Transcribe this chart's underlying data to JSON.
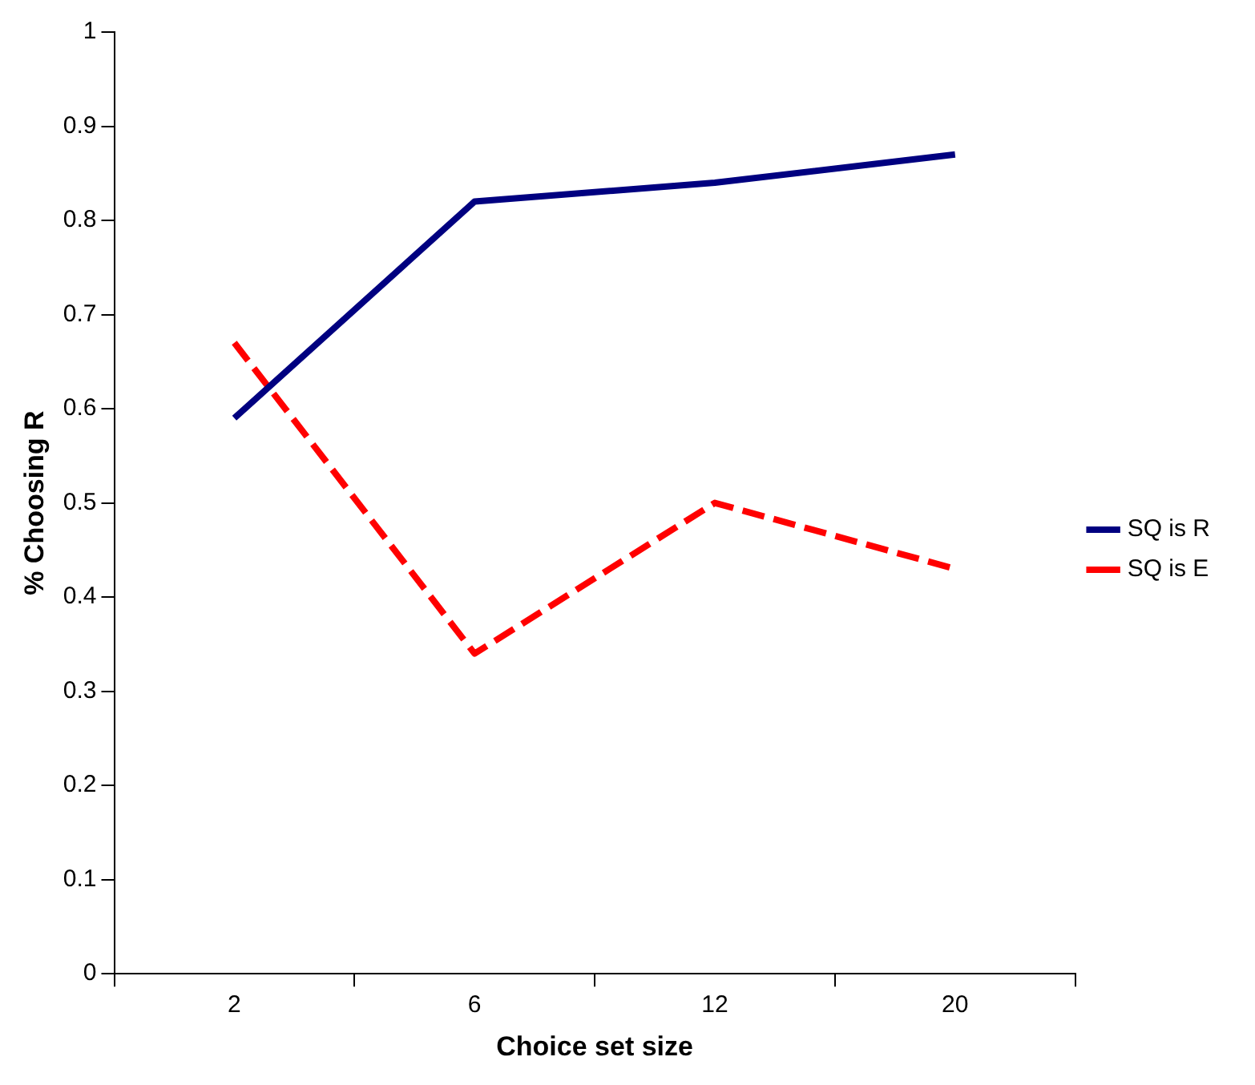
{
  "chart_data": {
    "type": "line",
    "xlabel": "Choice set size",
    "ylabel": "% Choosing R",
    "categories": [
      "2",
      "6",
      "12",
      "20"
    ],
    "series": [
      {
        "name": "SQ is R",
        "color": "#000080",
        "values": [
          0.59,
          0.82,
          0.84,
          0.87
        ],
        "line_style": "solid"
      },
      {
        "name": "SQ is E",
        "color": "#ff0000",
        "values": [
          0.67,
          0.34,
          0.5,
          0.43
        ],
        "line_style": "dashed"
      }
    ],
    "ylim": [
      0,
      1
    ],
    "yticks": [
      0,
      0.1,
      0.2,
      0.3,
      0.4,
      0.5,
      0.6,
      0.7,
      0.8,
      0.9,
      1
    ],
    "grid": false,
    "legend": "right",
    "marker": "none"
  }
}
